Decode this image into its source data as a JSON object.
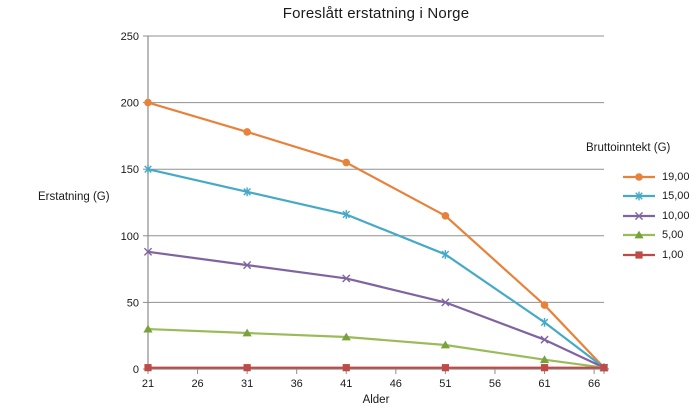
{
  "chart_data": {
    "type": "line",
    "title": "Foreslått erstatning i Norge",
    "xlabel": "Alder",
    "ylabel": "Erstatning (G)",
    "legend_title": "Bruttoinntekt (G)",
    "legend_position": "right",
    "grid": true,
    "x": [
      21,
      31,
      41,
      51,
      61,
      67
    ],
    "x_ticks": [
      21,
      26,
      31,
      36,
      41,
      46,
      51,
      56,
      61,
      66
    ],
    "y_ticks": [
      0,
      50,
      100,
      150,
      200,
      250
    ],
    "xlim": [
      21,
      67
    ],
    "ylim": [
      0,
      250
    ],
    "axis_color": "#8C8C8C",
    "grid_color": "#909090",
    "series": [
      {
        "name": "19,00",
        "marker": "circle",
        "color": "#E8823B",
        "marker_color": "#E8823B",
        "values": [
          200,
          178,
          155,
          115,
          48,
          1
        ]
      },
      {
        "name": "15,00",
        "marker": "asterisk",
        "color": "#45A9C8",
        "marker_color": "#45A9C8",
        "values": [
          150,
          133,
          116,
          86,
          35,
          1
        ]
      },
      {
        "name": "10,00",
        "marker": "x",
        "color": "#8064A2",
        "marker_color": "#8064A2",
        "values": [
          88,
          78,
          68,
          50,
          22,
          1
        ]
      },
      {
        "name": "5,00",
        "marker": "triangle",
        "color": "#9BBB59",
        "marker_color": "#79A13E",
        "values": [
          30,
          27,
          24,
          18,
          7,
          1
        ]
      },
      {
        "name": "1,00",
        "marker": "square",
        "color": "#BE4B48",
        "marker_color": "#BE4B48",
        "values": [
          1,
          1,
          1,
          1,
          1,
          1
        ]
      }
    ]
  }
}
